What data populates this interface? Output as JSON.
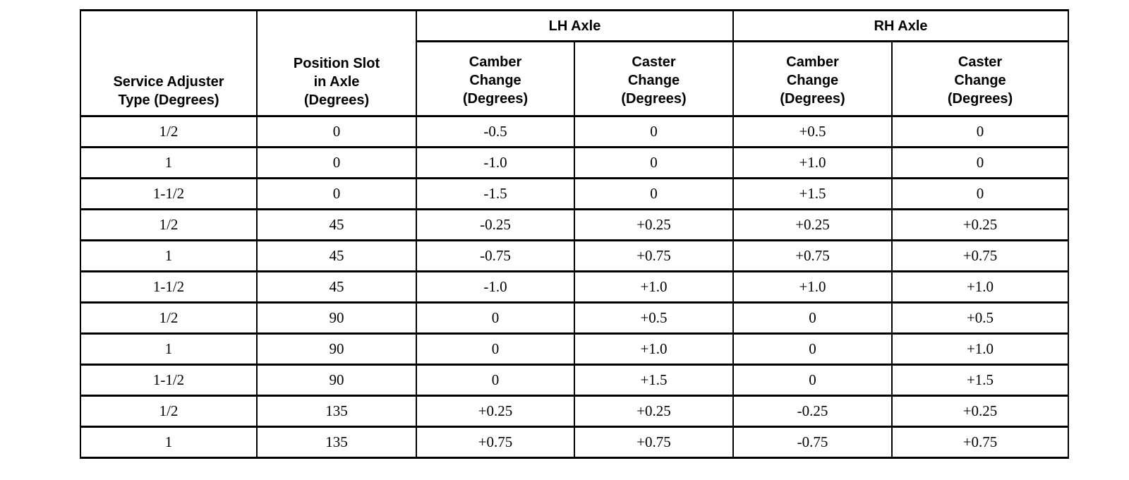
{
  "page": {
    "background_color": "#ffffff",
    "border_color": "#000000",
    "text_color": "#000000"
  },
  "table": {
    "header": {
      "service_adjuster": "Service Adjuster\nType (Degrees)",
      "position_slot": "Position Slot\nin Axle\n(Degrees)",
      "lh_axle": "LH Axle",
      "rh_axle": "RH Axle",
      "lh_camber": "Camber\nChange\n(Degrees)",
      "lh_caster": "Caster\nChange\n(Degrees)",
      "rh_camber": "Camber\nChange\n(Degrees)",
      "rh_caster": "Caster\nChange\n(Degrees)"
    },
    "rows": [
      [
        "1/2",
        "0",
        "-0.5",
        "0",
        "+0.5",
        "0"
      ],
      [
        "1",
        "0",
        "-1.0",
        "0",
        "+1.0",
        "0"
      ],
      [
        "1-1/2",
        "0",
        "-1.5",
        "0",
        "+1.5",
        "0"
      ],
      [
        "1/2",
        "45",
        "-0.25",
        "+0.25",
        "+0.25",
        "+0.25"
      ],
      [
        "1",
        "45",
        "-0.75",
        "+0.75",
        "+0.75",
        "+0.75"
      ],
      [
        "1-1/2",
        "45",
        "-1.0",
        "+1.0",
        "+1.0",
        "+1.0"
      ],
      [
        "1/2",
        "90",
        "0",
        "+0.5",
        "0",
        "+0.5"
      ],
      [
        "1",
        "90",
        "0",
        "+1.0",
        "0",
        "+1.0"
      ],
      [
        "1-1/2",
        "90",
        "0",
        "+1.5",
        "0",
        "+1.5"
      ],
      [
        "1/2",
        "135",
        "+0.25",
        "+0.25",
        "-0.25",
        "+0.25"
      ],
      [
        "1",
        "135",
        "+0.75",
        "+0.75",
        "-0.75",
        "+0.75"
      ]
    ]
  }
}
